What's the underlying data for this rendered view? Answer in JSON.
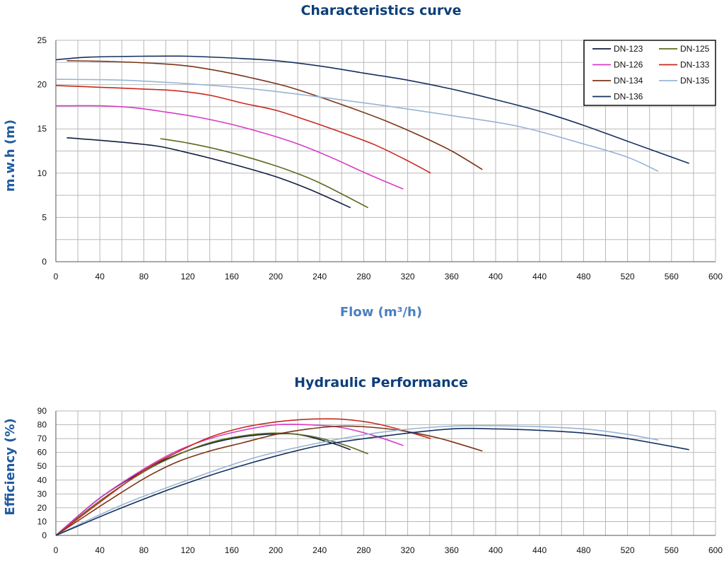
{
  "chart_data": [
    {
      "type": "line",
      "title": "Characteristics curve",
      "xlabel": "Flow (m³/h)",
      "ylabel": "m.w.h (m)",
      "xlim": [
        0,
        600
      ],
      "ylim": [
        0,
        25
      ],
      "x_ticks": [
        "0",
        "40",
        "80",
        "120",
        "160",
        "200",
        "240",
        "280",
        "320",
        "360",
        "400",
        "440",
        "480",
        "520",
        "560",
        "600"
      ],
      "y_ticks": [
        "0",
        "5",
        "10",
        "15",
        "20",
        "25"
      ],
      "grid": true,
      "legend_position": "top-right",
      "series": [
        {
          "name": "DN-123",
          "color": "#0f1f3d",
          "points": [
            [
              10,
              14
            ],
            [
              50,
              13.6
            ],
            [
              90,
              13.1
            ],
            [
              110,
              12.6
            ],
            [
              140,
              11.7
            ],
            [
              170,
              10.7
            ],
            [
              200,
              9.6
            ],
            [
              230,
              8.2
            ],
            [
              268,
              6.1
            ]
          ]
        },
        {
          "name": "DN-125",
          "color": "#5c6b1d",
          "points": [
            [
              95,
              13.9
            ],
            [
              120,
              13.4
            ],
            [
              150,
              12.6
            ],
            [
              180,
              11.6
            ],
            [
              210,
              10.4
            ],
            [
              240,
              8.9
            ],
            [
              284,
              6.1
            ]
          ]
        },
        {
          "name": "DN-126",
          "color": "#d73bc6",
          "points": [
            [
              0,
              17.6
            ],
            [
              40,
              17.6
            ],
            [
              70,
              17.4
            ],
            [
              100,
              16.9
            ],
            [
              130,
              16.3
            ],
            [
              160,
              15.5
            ],
            [
              190,
              14.5
            ],
            [
              220,
              13.3
            ],
            [
              250,
              11.8
            ],
            [
              280,
              10.1
            ],
            [
              316,
              8.2
            ]
          ]
        },
        {
          "name": "DN-133",
          "color": "#c8281e",
          "points": [
            [
              0,
              19.9
            ],
            [
              40,
              19.7
            ],
            [
              80,
              19.5
            ],
            [
              110,
              19.3
            ],
            [
              140,
              18.8
            ],
            [
              170,
              17.9
            ],
            [
              200,
              17.1
            ],
            [
              230,
              15.9
            ],
            [
              260,
              14.6
            ],
            [
              290,
              13.2
            ],
            [
              320,
              11.4
            ],
            [
              341,
              10
            ]
          ]
        },
        {
          "name": "DN-134",
          "color": "#7b3416",
          "points": [
            [
              10,
              22.7
            ],
            [
              50,
              22.6
            ],
            [
              90,
              22.4
            ],
            [
              120,
              22.1
            ],
            [
              150,
              21.5
            ],
            [
              180,
              20.7
            ],
            [
              210,
              19.8
            ],
            [
              240,
              18.6
            ],
            [
              270,
              17.3
            ],
            [
              300,
              15.9
            ],
            [
              330,
              14.3
            ],
            [
              360,
              12.5
            ],
            [
              388,
              10.4
            ]
          ]
        },
        {
          "name": "DN-135",
          "color": "#98b4d5",
          "points": [
            [
              0,
              20.6
            ],
            [
              60,
              20.5
            ],
            [
              120,
              20.1
            ],
            [
              180,
              19.5
            ],
            [
              240,
              18.6
            ],
            [
              300,
              17.6
            ],
            [
              360,
              16.5
            ],
            [
              420,
              15.3
            ],
            [
              480,
              13.3
            ],
            [
              520,
              11.8
            ],
            [
              548,
              10.2
            ]
          ]
        },
        {
          "name": "DN-136",
          "color": "#16305f",
          "points": [
            [
              0,
              22.8
            ],
            [
              30,
              23.1
            ],
            [
              80,
              23.2
            ],
            [
              120,
              23.2
            ],
            [
              160,
              23
            ],
            [
              200,
              22.7
            ],
            [
              240,
              22.1
            ],
            [
              280,
              21.3
            ],
            [
              320,
              20.5
            ],
            [
              360,
              19.5
            ],
            [
              400,
              18.3
            ],
            [
              440,
              17
            ],
            [
              480,
              15.4
            ],
            [
              520,
              13.6
            ],
            [
              576,
              11.1
            ]
          ]
        }
      ]
    },
    {
      "type": "line",
      "title": "Hydraulic Performance",
      "xlabel": "",
      "ylabel": "Efficiency (%)",
      "xlim": [
        0,
        600
      ],
      "ylim": [
        0,
        90
      ],
      "x_ticks": [
        "0",
        "40",
        "80",
        "120",
        "160",
        "200",
        "240",
        "280",
        "320",
        "360",
        "400",
        "440",
        "480",
        "520",
        "560",
        "600"
      ],
      "y_ticks": [
        "0",
        "10",
        "20",
        "30",
        "40",
        "50",
        "60",
        "70",
        "80",
        "90"
      ],
      "grid": true,
      "series": [
        {
          "name": "DN-123",
          "color": "#0f1f3d",
          "points": [
            [
              0,
              0
            ],
            [
              40,
              27
            ],
            [
              80,
              47
            ],
            [
              100,
              55
            ],
            [
              130,
              64
            ],
            [
              160,
              70
            ],
            [
              190,
              73
            ],
            [
              220,
              73
            ],
            [
              250,
              67
            ],
            [
              268,
              62
            ]
          ]
        },
        {
          "name": "DN-125",
          "color": "#5c6b1d",
          "points": [
            [
              0,
              0
            ],
            [
              40,
              25
            ],
            [
              80,
              46
            ],
            [
              110,
              58
            ],
            [
              140,
              67
            ],
            [
              170,
              72
            ],
            [
              200,
              74
            ],
            [
              230,
              72
            ],
            [
              260,
              66
            ],
            [
              284,
              59
            ]
          ]
        },
        {
          "name": "DN-126",
          "color": "#d73bc6",
          "points": [
            [
              0,
              0
            ],
            [
              40,
              27
            ],
            [
              80,
              48
            ],
            [
              110,
              61
            ],
            [
              140,
              70
            ],
            [
              170,
              76
            ],
            [
              200,
              80
            ],
            [
              230,
              80
            ],
            [
              260,
              78
            ],
            [
              290,
              72
            ],
            [
              316,
              65
            ]
          ]
        },
        {
          "name": "DN-133",
          "color": "#c8281e",
          "points": [
            [
              0,
              0
            ],
            [
              40,
              24
            ],
            [
              80,
              47
            ],
            [
              110,
              60
            ],
            [
              140,
              71
            ],
            [
              170,
              78
            ],
            [
              200,
              82
            ],
            [
              230,
              84
            ],
            [
              260,
              84
            ],
            [
              290,
              81
            ],
            [
              320,
              75
            ],
            [
              341,
              70
            ]
          ]
        },
        {
          "name": "DN-134",
          "color": "#7b3416",
          "points": [
            [
              0,
              0
            ],
            [
              40,
              21
            ],
            [
              80,
              41
            ],
            [
              110,
              53
            ],
            [
              140,
              61
            ],
            [
              170,
              67
            ],
            [
              200,
              73
            ],
            [
              230,
              77
            ],
            [
              260,
              79
            ],
            [
              290,
              78
            ],
            [
              320,
              75
            ],
            [
              350,
              70
            ],
            [
              388,
              61
            ]
          ]
        },
        {
          "name": "DN-135",
          "color": "#98b4d5",
          "points": [
            [
              0,
              0
            ],
            [
              60,
              22
            ],
            [
              120,
              40
            ],
            [
              180,
              56
            ],
            [
              240,
              67
            ],
            [
              300,
              75
            ],
            [
              360,
              79
            ],
            [
              420,
              79
            ],
            [
              480,
              77
            ],
            [
              520,
              73
            ],
            [
              548,
              69
            ]
          ]
        },
        {
          "name": "DN-136",
          "color": "#16305f",
          "points": [
            [
              0,
              0
            ],
            [
              60,
              20
            ],
            [
              120,
              38
            ],
            [
              180,
              53
            ],
            [
              240,
              65
            ],
            [
              300,
              72
            ],
            [
              360,
              77
            ],
            [
              400,
              77
            ],
            [
              440,
              76
            ],
            [
              480,
              74
            ],
            [
              520,
              70
            ],
            [
              576,
              62
            ]
          ]
        }
      ]
    }
  ]
}
